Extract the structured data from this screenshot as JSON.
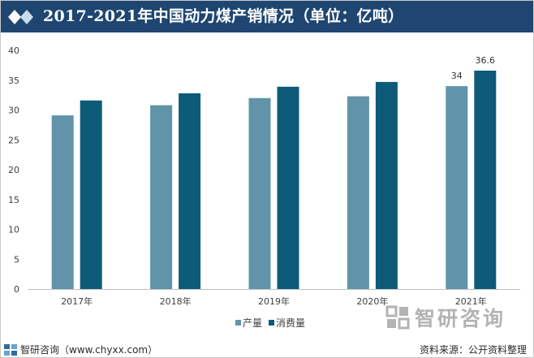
{
  "header": {
    "title": "2017-2021年中国动力煤产销情况（单位：亿吨）"
  },
  "chart_data": {
    "type": "bar",
    "categories": [
      "2017年",
      "2018年",
      "2019年",
      "2020年",
      "2021年"
    ],
    "series": [
      {
        "name": "产量",
        "values": [
          29.1,
          30.8,
          32.0,
          32.3,
          34.0
        ],
        "color": "#6194a8"
      },
      {
        "name": "消费量",
        "values": [
          31.6,
          32.8,
          33.9,
          34.7,
          36.6
        ],
        "color": "#0d5b79"
      }
    ],
    "data_labels": [
      {
        "series": 0,
        "index": 4,
        "text": "34"
      },
      {
        "series": 1,
        "index": 4,
        "text": "36.6"
      }
    ],
    "ylim": [
      0,
      40
    ],
    "yticks": [
      0,
      5,
      10,
      15,
      20,
      25,
      30,
      35,
      40
    ],
    "grid": false,
    "legend": "bottom-center"
  },
  "watermark": {
    "text": "智研咨询"
  },
  "footer": {
    "brand": "智研咨询（www.chyxx.com）",
    "source": "资料来源：公开资料整理"
  }
}
